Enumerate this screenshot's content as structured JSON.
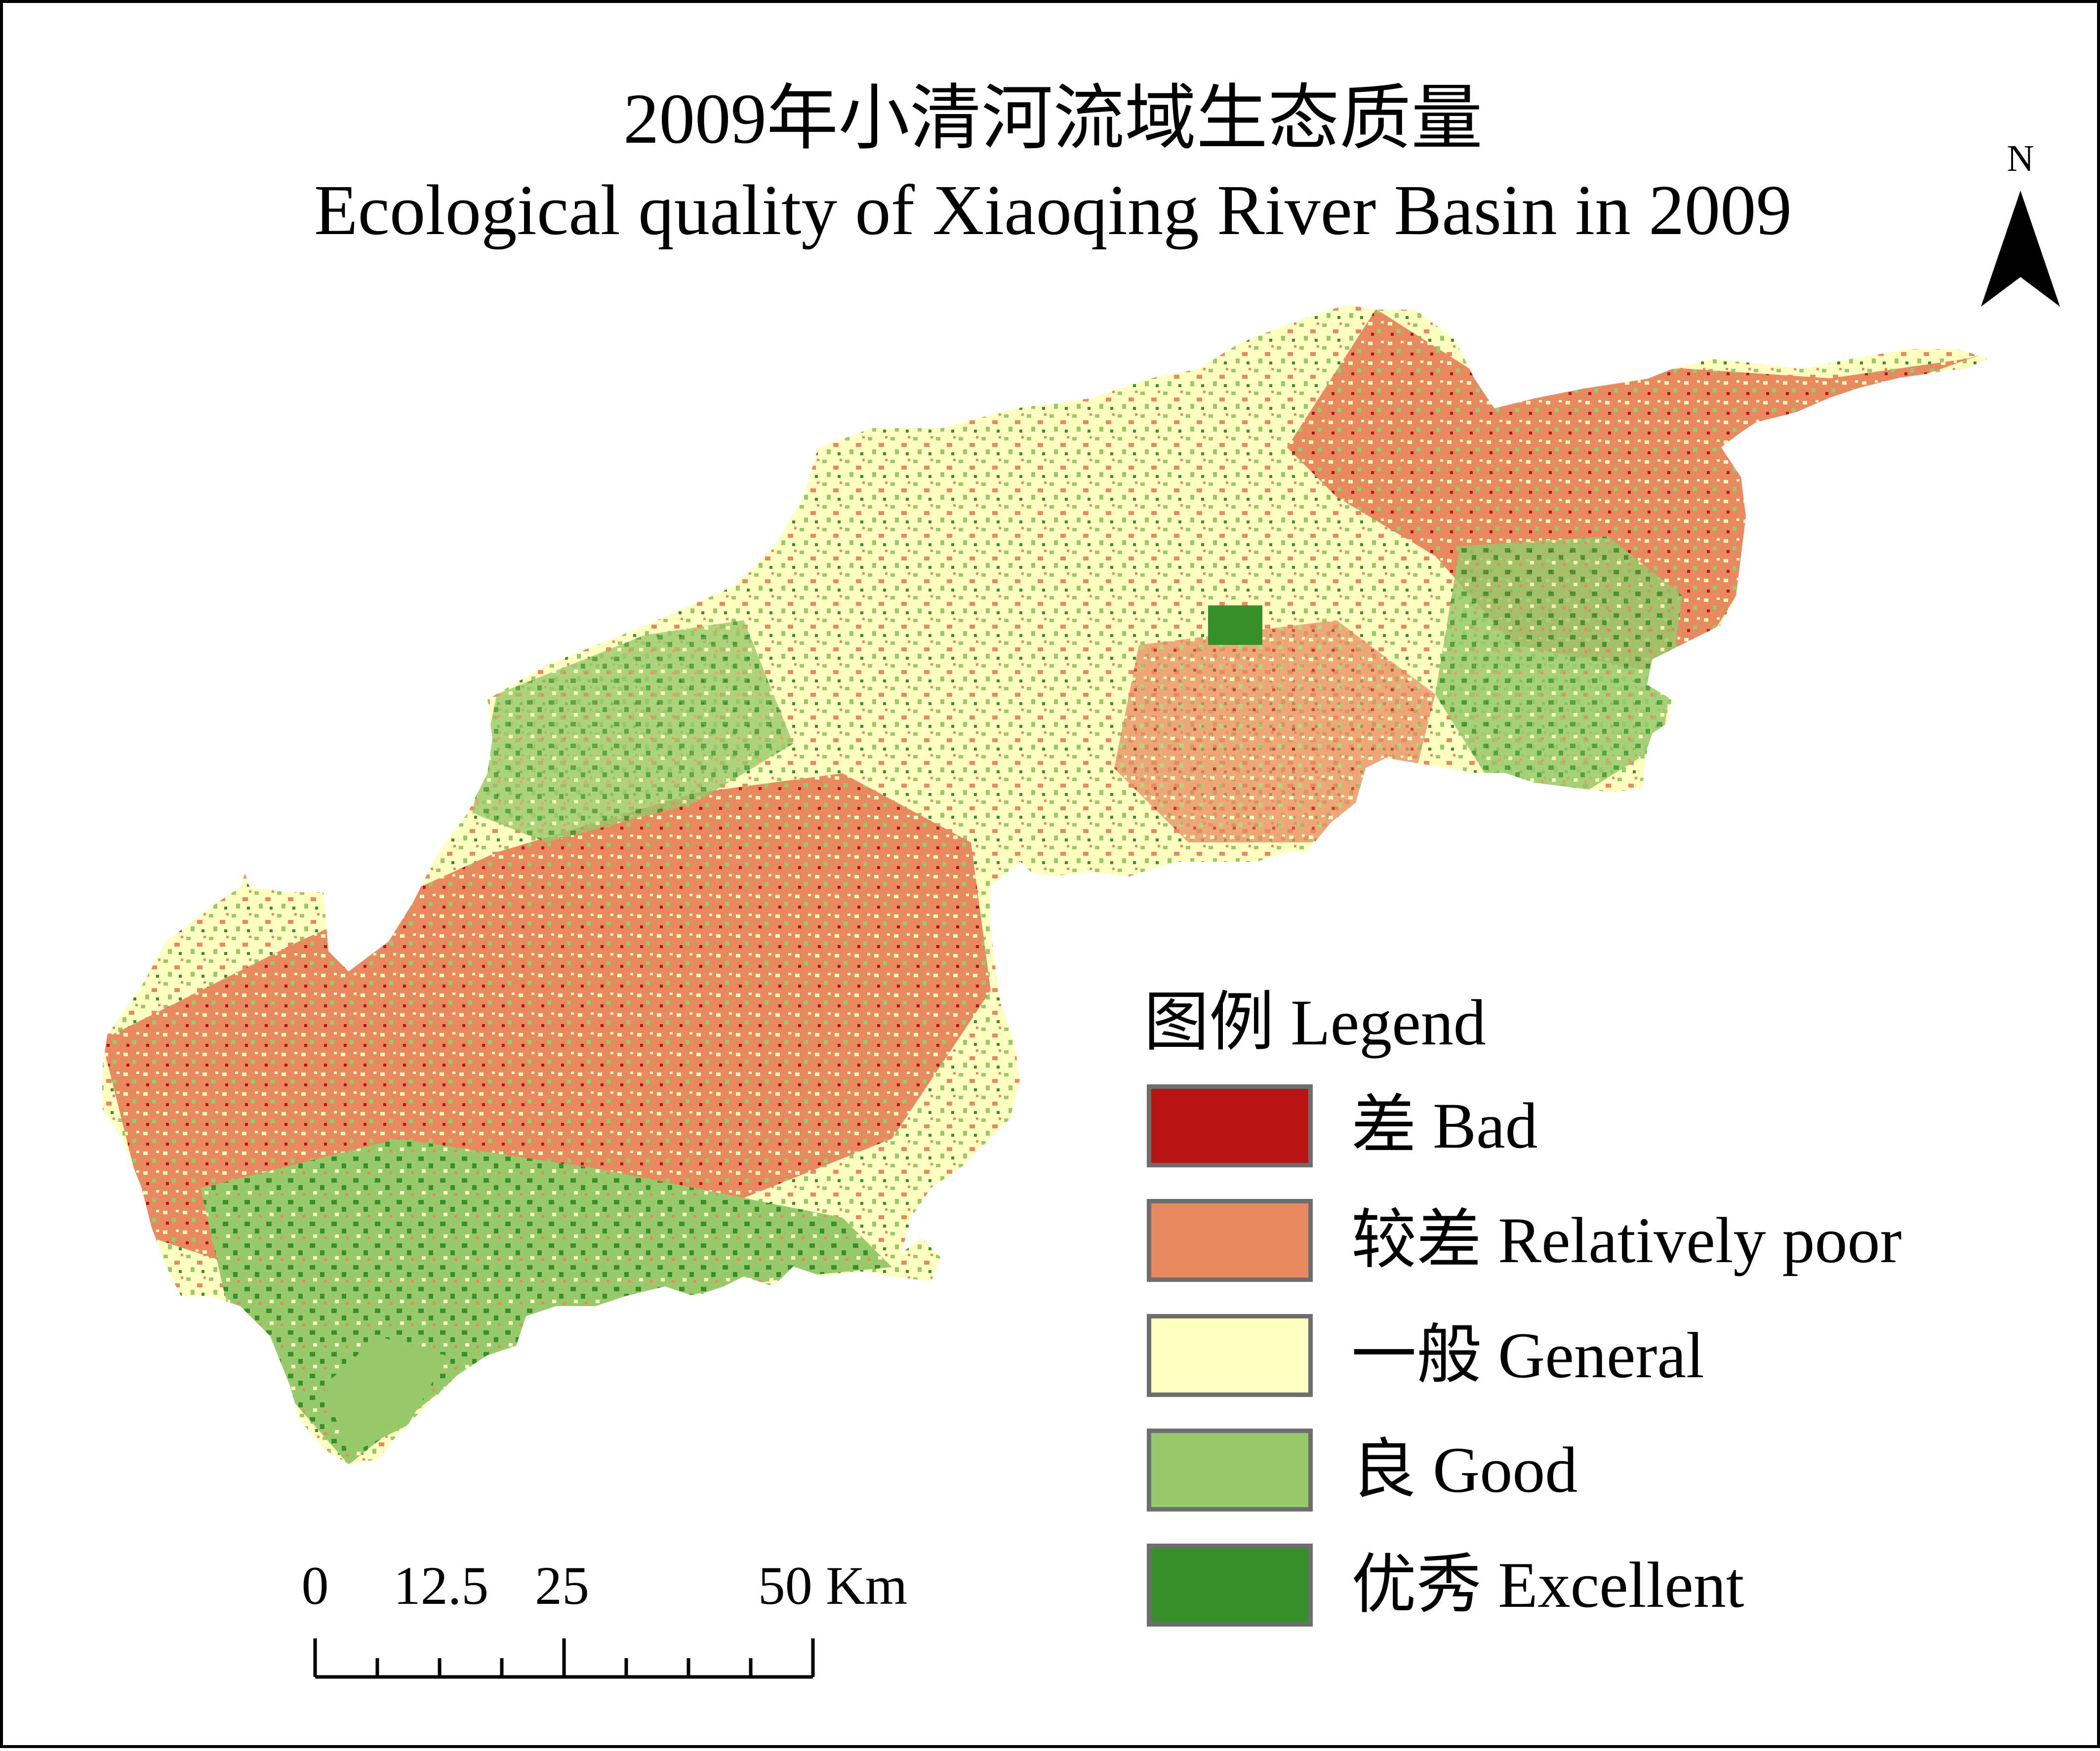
{
  "map": {
    "title_cn": "2009年小清河流域生态质量",
    "title_en": "Ecological quality of Xiaoqing River Basin in 2009",
    "colors": {
      "bad": "#b81414",
      "relatively_poor": "#e8895f",
      "general": "#ffffc2",
      "good": "#98c96a",
      "excellent": "#38902a"
    }
  },
  "north_arrow": {
    "label": "N",
    "icon": "north-arrow-icon"
  },
  "legend": {
    "title": "图例 Legend",
    "items": [
      {
        "label": "差 Bad",
        "color": "#b81414"
      },
      {
        "label": "较差 Relatively poor",
        "color": "#e8895f"
      },
      {
        "label": "一般 General",
        "color": "#ffffc2"
      },
      {
        "label": "良 Good",
        "color": "#98c96a"
      },
      {
        "label": "优秀 Excellent",
        "color": "#38902a"
      }
    ]
  },
  "scalebar": {
    "labels": [
      "0",
      "12.5",
      "25",
      "50 Km"
    ],
    "values_km": [
      0,
      12.5,
      25,
      50
    ],
    "unit": "Km"
  }
}
